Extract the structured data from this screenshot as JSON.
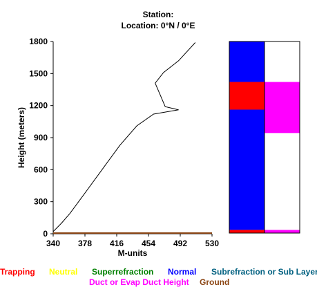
{
  "header": {
    "station_label": "Station:",
    "location_label": "Location:  0°N /  0°E"
  },
  "colors": {
    "trapping": "#ff0000",
    "neutral": "#ffff00",
    "superrefraction": "#008000",
    "normal": "#0000ff",
    "subrefraction": "#006080",
    "duct": "#ff00ff",
    "ground": "#8b4513"
  },
  "legend": {
    "trapping": "Trapping",
    "neutral": "Neutral",
    "superrefraction": "Superrefraction",
    "normal": "Normal",
    "subrefraction": "Subrefraction or Sub Layer",
    "duct": "Duct or Evap Duct Height",
    "ground": "Ground"
  },
  "chart_data": [
    {
      "type": "line",
      "title": "",
      "xlabel": "M-units",
      "ylabel": "Height (meters)",
      "xlim": [
        340,
        530
      ],
      "ylim": [
        0,
        1800
      ],
      "xticks": [
        "340",
        "378",
        "416",
        "454",
        "492",
        "530"
      ],
      "yticks": [
        "0",
        "300",
        "600",
        "900",
        "1200",
        "1500",
        "1800"
      ],
      "series": [
        {
          "points": [
            [
              340,
              20
            ],
            [
              350,
              100
            ],
            [
              360,
              190
            ],
            [
              376,
              360
            ],
            [
              392,
              530
            ],
            [
              404,
              660
            ],
            [
              420,
              830
            ],
            [
              440,
              1010
            ],
            [
              460,
              1120
            ],
            [
              490,
              1160
            ],
            [
              474,
              1190
            ],
            [
              462,
              1410
            ],
            [
              472,
              1510
            ],
            [
              490,
              1620
            ],
            [
              510,
              1790
            ]
          ]
        }
      ],
      "ground": {
        "y": 0
      }
    },
    {
      "type": "heatmap",
      "title": "",
      "ylim": [
        0,
        1800
      ],
      "columns": [
        {
          "segments": [
            {
              "from": 0,
              "to": 30,
              "category": "trapping"
            },
            {
              "from": 30,
              "to": 1160,
              "category": "normal"
            },
            {
              "from": 1160,
              "to": 1420,
              "category": "trapping"
            },
            {
              "from": 1420,
              "to": 1800,
              "category": "normal"
            }
          ]
        },
        {
          "segments": [
            {
              "from": 0,
              "to": 30,
              "category": "duct"
            },
            {
              "from": 30,
              "to": 940,
              "category": "none"
            },
            {
              "from": 940,
              "to": 1420,
              "category": "duct"
            },
            {
              "from": 1420,
              "to": 1800,
              "category": "none"
            }
          ]
        }
      ]
    }
  ]
}
